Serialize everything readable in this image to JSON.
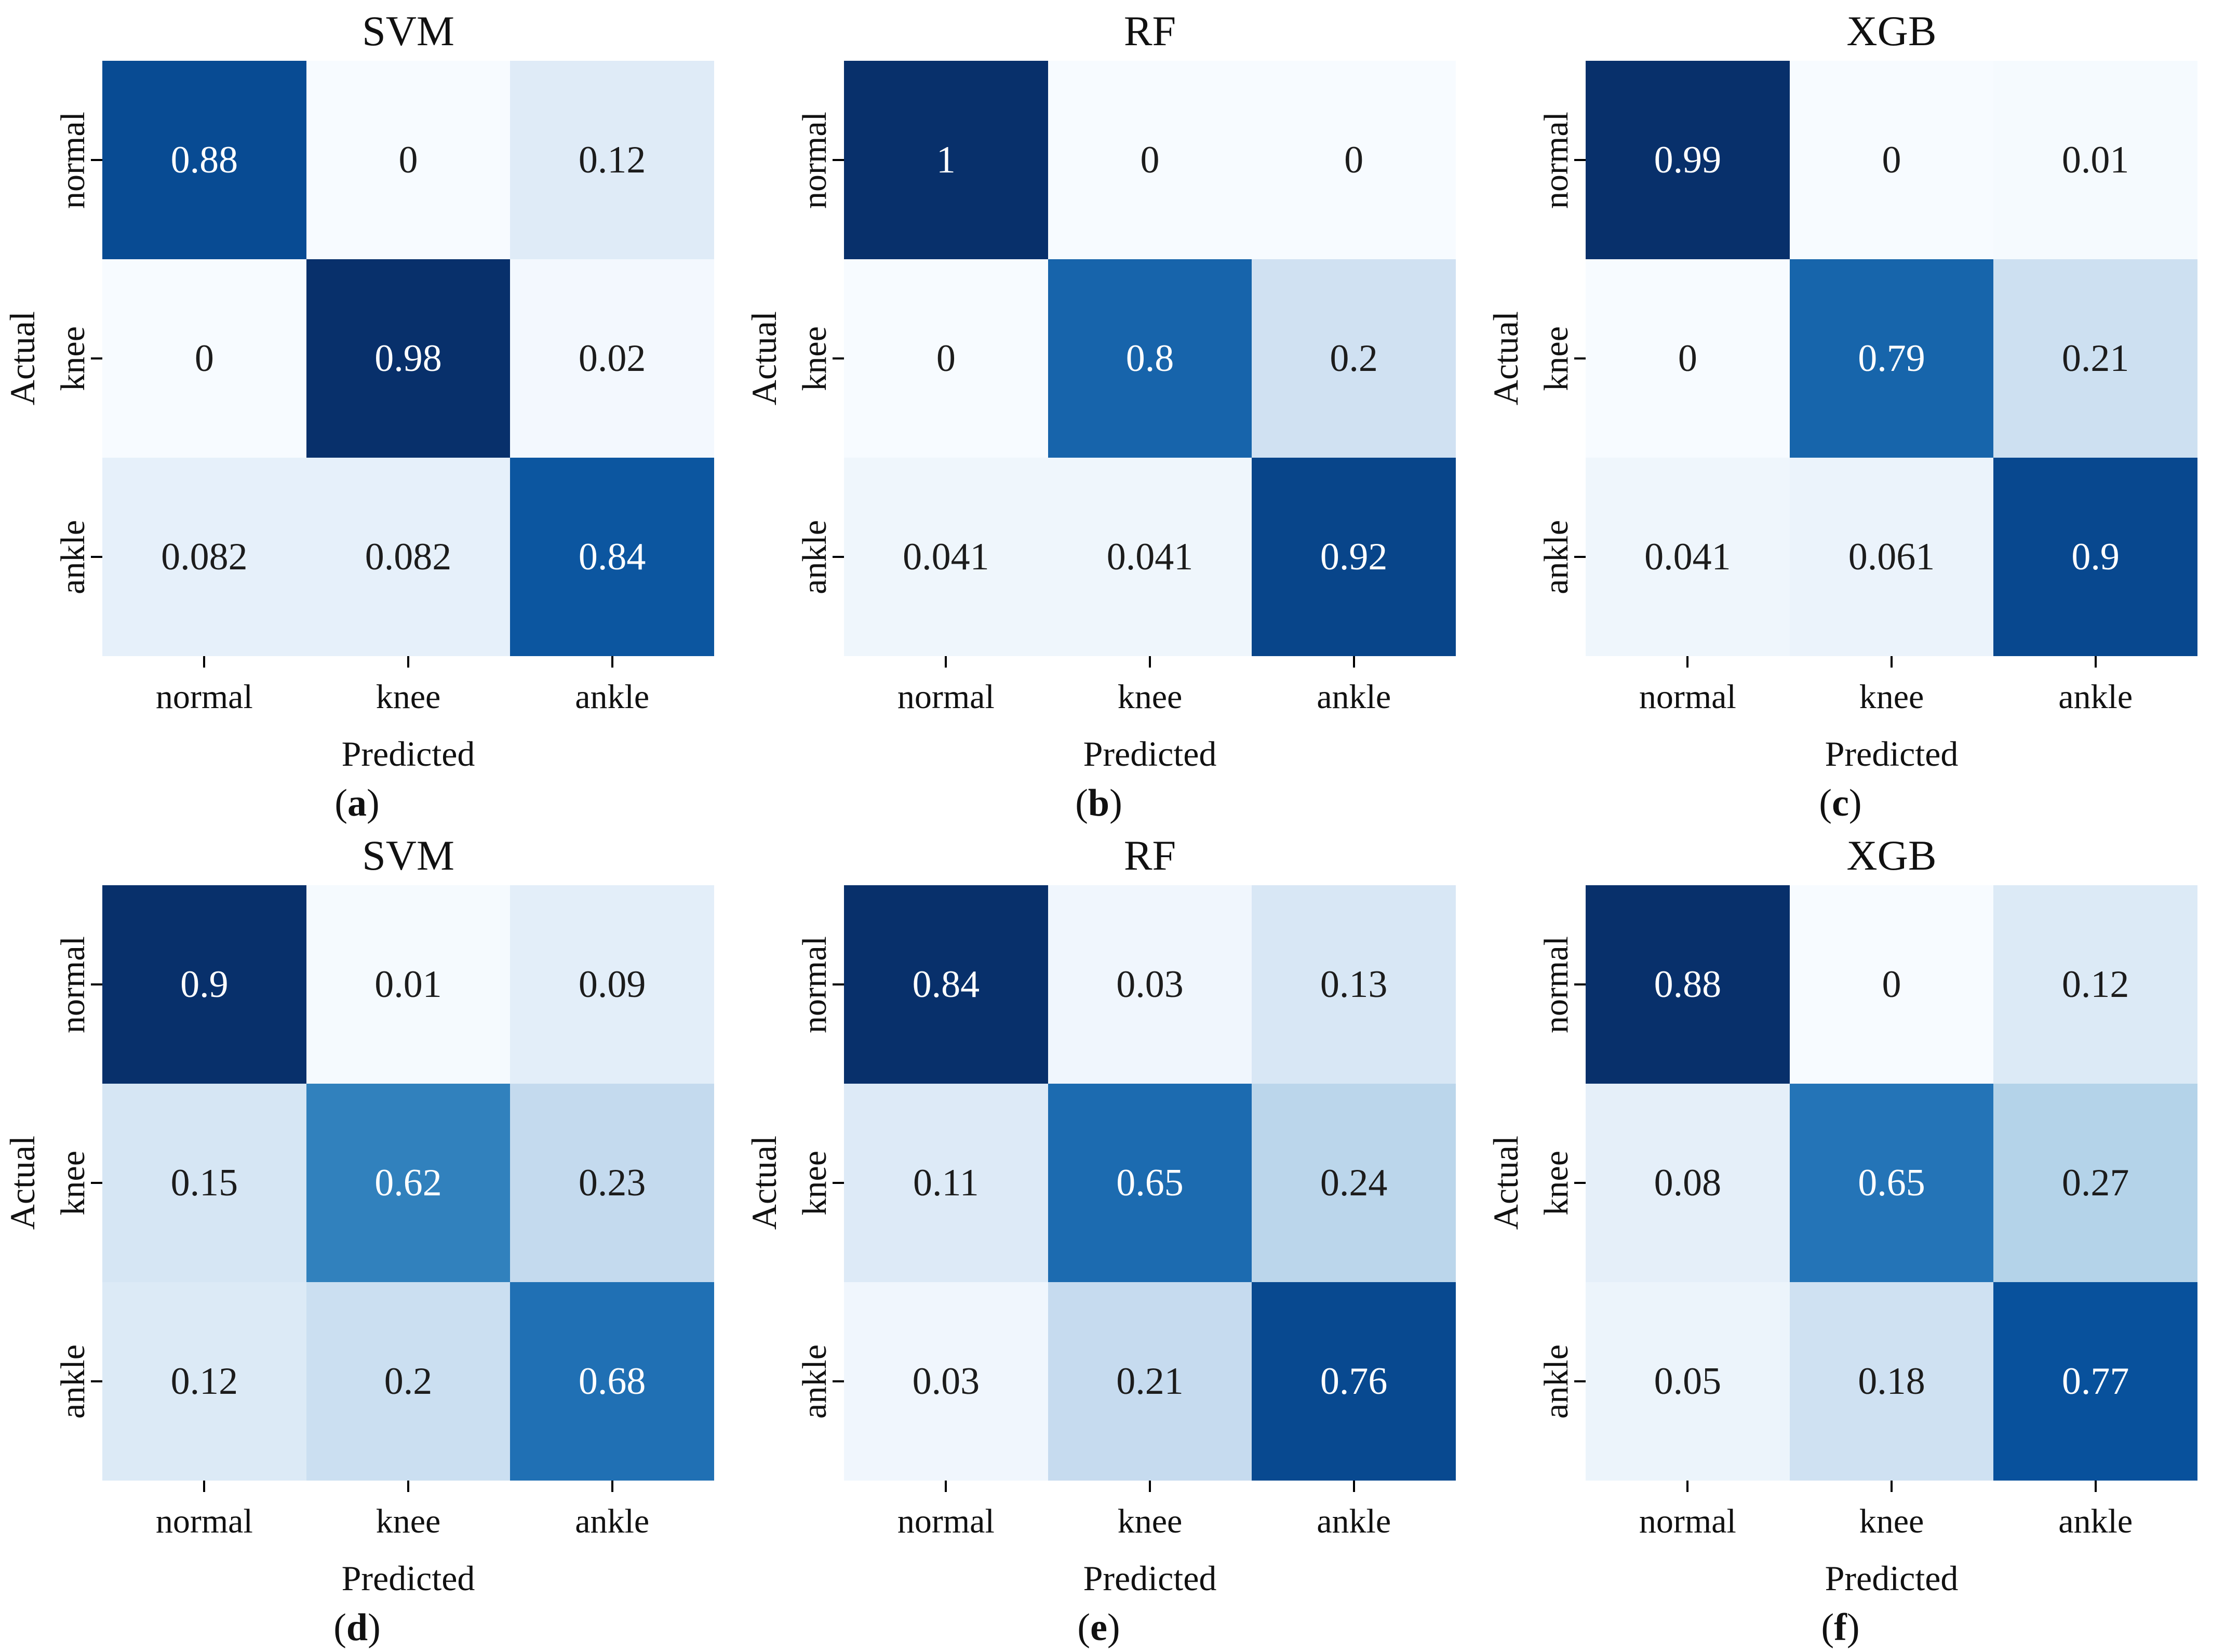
{
  "axes": {
    "x_label": "Predicted",
    "y_label": "Actual"
  },
  "classes": [
    "normal",
    "knee",
    "ankle"
  ],
  "caption": {
    "open": "(",
    "close": ")"
  },
  "palette": {
    "colormap_name": "Blues",
    "colormap_stops": [
      "#f7fbff",
      "#deebf7",
      "#c6dbef",
      "#9ecae1",
      "#6baed6",
      "#4292c6",
      "#2171b5",
      "#08519c",
      "#08306b"
    ],
    "text_dark": "#1c1c1c",
    "text_light": "#ffffff",
    "tick_color": "#000000",
    "background": "#ffffff"
  },
  "chart_data": [
    {
      "type": "heatmap",
      "panel": "a",
      "title": "SVM",
      "xlabel": "Predicted",
      "ylabel": "Actual",
      "x_categories": [
        "normal",
        "knee",
        "ankle"
      ],
      "y_categories": [
        "normal",
        "knee",
        "ankle"
      ],
      "values": [
        [
          0.88,
          0,
          0.12
        ],
        [
          0,
          0.98,
          0.02
        ],
        [
          0.082,
          0.082,
          0.84
        ]
      ],
      "colormap": "Blues",
      "vmin": 0,
      "vmax": 0.98,
      "grid": false,
      "legend": false
    },
    {
      "type": "heatmap",
      "panel": "b",
      "title": "RF",
      "xlabel": "Predicted",
      "ylabel": "Actual",
      "x_categories": [
        "normal",
        "knee",
        "ankle"
      ],
      "y_categories": [
        "normal",
        "knee",
        "ankle"
      ],
      "values": [
        [
          1,
          0,
          0
        ],
        [
          0,
          0.8,
          0.2
        ],
        [
          0.041,
          0.041,
          0.92
        ]
      ],
      "colormap": "Blues",
      "vmin": 0,
      "vmax": 1,
      "grid": false,
      "legend": false
    },
    {
      "type": "heatmap",
      "panel": "c",
      "title": "XGB",
      "xlabel": "Predicted",
      "ylabel": "Actual",
      "x_categories": [
        "normal",
        "knee",
        "ankle"
      ],
      "y_categories": [
        "normal",
        "knee",
        "ankle"
      ],
      "values": [
        [
          0.99,
          0,
          0.01
        ],
        [
          0,
          0.79,
          0.21
        ],
        [
          0.041,
          0.061,
          0.9
        ]
      ],
      "colormap": "Blues",
      "vmin": 0,
      "vmax": 0.99,
      "grid": false,
      "legend": false
    },
    {
      "type": "heatmap",
      "panel": "d",
      "title": "SVM",
      "xlabel": "Predicted",
      "ylabel": "Actual",
      "x_categories": [
        "normal",
        "knee",
        "ankle"
      ],
      "y_categories": [
        "normal",
        "knee",
        "ankle"
      ],
      "values": [
        [
          0.9,
          0.01,
          0.09
        ],
        [
          0.15,
          0.62,
          0.23
        ],
        [
          0.12,
          0.2,
          0.68
        ]
      ],
      "colormap": "Blues",
      "vmin": 0,
      "vmax": 0.9,
      "grid": false,
      "legend": false
    },
    {
      "type": "heatmap",
      "panel": "e",
      "title": "RF",
      "xlabel": "Predicted",
      "ylabel": "Actual",
      "x_categories": [
        "normal",
        "knee",
        "ankle"
      ],
      "y_categories": [
        "normal",
        "knee",
        "ankle"
      ],
      "values": [
        [
          0.84,
          0.03,
          0.13
        ],
        [
          0.11,
          0.65,
          0.24
        ],
        [
          0.03,
          0.21,
          0.76
        ]
      ],
      "colormap": "Blues",
      "vmin": 0,
      "vmax": 0.84,
      "grid": false,
      "legend": false
    },
    {
      "type": "heatmap",
      "panel": "f",
      "title": "XGB",
      "xlabel": "Predicted",
      "ylabel": "Actual",
      "x_categories": [
        "normal",
        "knee",
        "ankle"
      ],
      "y_categories": [
        "normal",
        "knee",
        "ankle"
      ],
      "values": [
        [
          0.88,
          0,
          0.12
        ],
        [
          0.08,
          0.65,
          0.27
        ],
        [
          0.05,
          0.18,
          0.77
        ]
      ],
      "colormap": "Blues",
      "vmin": 0,
      "vmax": 0.88,
      "grid": false,
      "legend": false
    }
  ]
}
